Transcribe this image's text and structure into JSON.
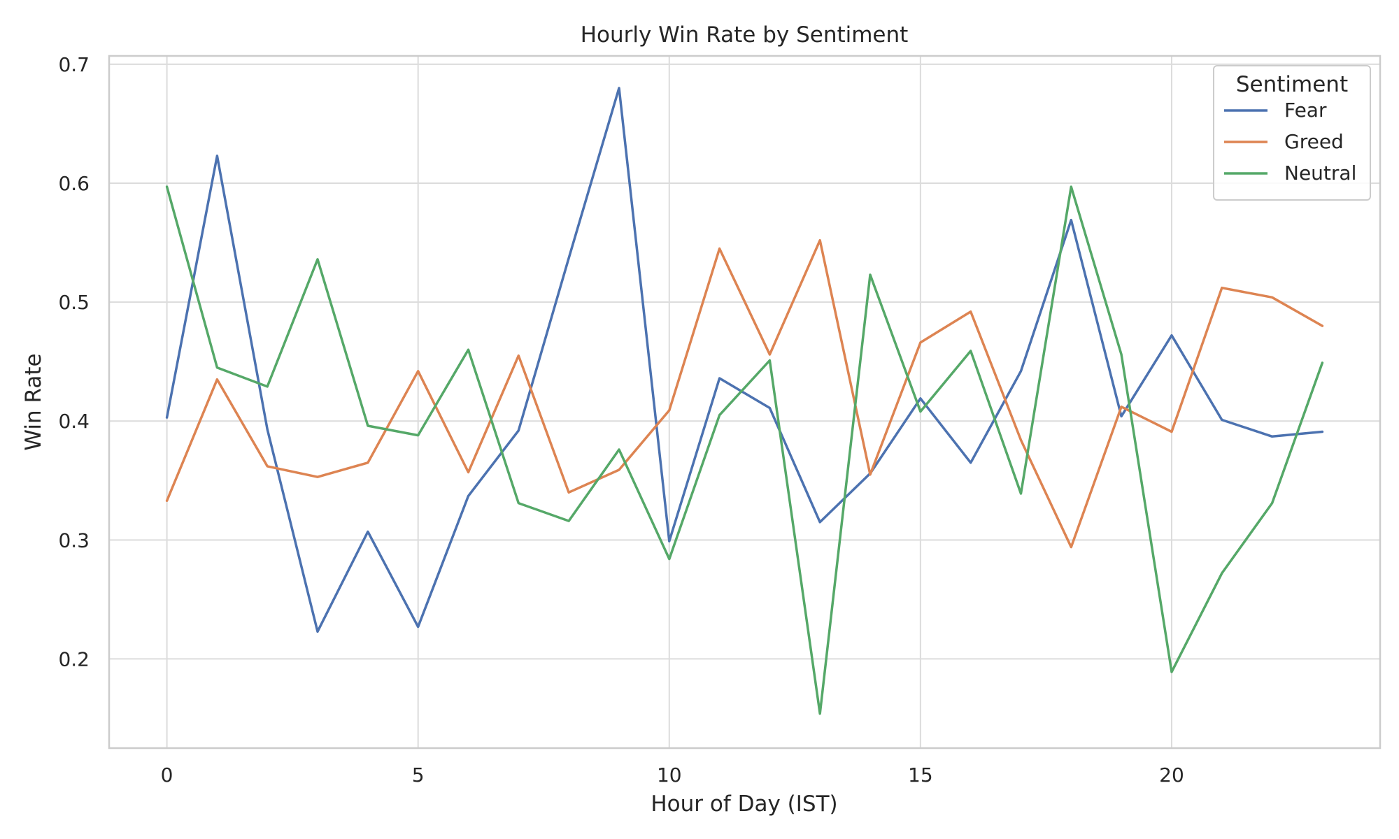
{
  "chart_data": {
    "type": "line",
    "title": "Hourly Win Rate by Sentiment",
    "xlabel": "Hour of Day (IST)",
    "ylabel": "Win Rate",
    "xlim": [
      -1.15,
      24.15
    ],
    "ylim": [
      0.125,
      0.707
    ],
    "xticks": [
      0,
      5,
      10,
      15,
      20
    ],
    "yticks": [
      0.2,
      0.3,
      0.4,
      0.5,
      0.6,
      0.7
    ],
    "ytick_labels": [
      "0.2",
      "0.3",
      "0.4",
      "0.5",
      "0.6",
      "0.7"
    ],
    "grid": true,
    "legend": {
      "title": "Sentiment",
      "position": "top-right"
    },
    "x": [
      0,
      1,
      2,
      3,
      4,
      5,
      6,
      7,
      8,
      9,
      10,
      11,
      12,
      13,
      14,
      15,
      16,
      17,
      18,
      19,
      20,
      21,
      22,
      23
    ],
    "series": [
      {
        "name": "Fear",
        "color": "#4c72b0",
        "values": [
          0.403,
          0.623,
          0.393,
          0.223,
          0.307,
          0.227,
          0.337,
          0.392,
          0.537,
          0.68,
          0.299,
          0.436,
          0.411,
          0.315,
          0.356,
          0.419,
          0.365,
          0.442,
          0.569,
          0.404,
          0.472,
          0.401,
          0.387,
          0.391
        ]
      },
      {
        "name": "Greed",
        "color": "#dd8452",
        "values": [
          0.333,
          0.435,
          0.362,
          0.353,
          0.365,
          0.442,
          0.357,
          0.455,
          0.34,
          0.359,
          0.409,
          0.545,
          0.456,
          0.552,
          0.355,
          0.466,
          0.492,
          0.384,
          0.294,
          0.412,
          0.391,
          0.512,
          0.504,
          0.48
        ]
      },
      {
        "name": "Neutral",
        "color": "#55a868",
        "values": [
          0.597,
          0.445,
          0.429,
          0.536,
          0.396,
          0.388,
          0.46,
          0.331,
          0.316,
          0.376,
          0.284,
          0.405,
          0.451,
          0.154,
          0.523,
          0.408,
          0.459,
          0.339,
          0.597,
          0.456,
          0.189,
          0.272,
          0.331,
          0.449
        ]
      }
    ]
  }
}
